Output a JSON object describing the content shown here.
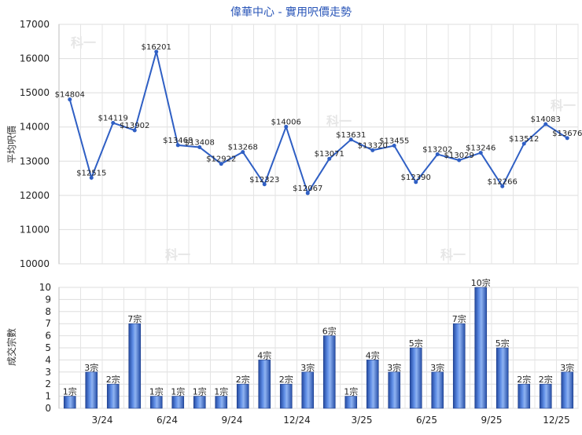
{
  "chart_data": [
    {
      "type": "line",
      "title": "偉華中心 - 實用呎價走勢",
      "ylabel": "平均呎價",
      "ylim": [
        10000,
        17000
      ],
      "yticks": [
        10000,
        11000,
        12000,
        13000,
        14000,
        15000,
        16000,
        17000
      ],
      "grid": true,
      "watermark": "科一",
      "series": [
        {
          "values": [
            14804,
            12515,
            14119,
            13902,
            16201,
            13468,
            13408,
            12922,
            13268,
            12323,
            14006,
            12067,
            13071,
            13631,
            13320,
            13455,
            12390,
            13202,
            13029,
            13246,
            12266,
            13512,
            14083,
            13676
          ],
          "labels": [
            "$14804",
            "$12515",
            "$14119",
            "$13902",
            "$16201",
            "$13468",
            "$13408",
            "$12922",
            "$13268",
            "$12323",
            "$14006",
            "$12067",
            "$13071",
            "$13631",
            "$13320",
            "$13455",
            "$12390",
            "$13202",
            "$13029",
            "$13246",
            "$12266",
            "$13512",
            "$14083",
            "$13676"
          ]
        }
      ],
      "colors": {
        "line": "#2f5fc4"
      }
    },
    {
      "type": "bar",
      "ylabel": "成交宗數",
      "ylim": [
        0,
        10
      ],
      "yticks": [
        0,
        1,
        2,
        3,
        4,
        5,
        6,
        7,
        8,
        9,
        10
      ],
      "grid": true,
      "x_tick_labels": [
        {
          "index": 2,
          "label": "3/24"
        },
        {
          "index": 5,
          "label": "6/24"
        },
        {
          "index": 8,
          "label": "9/24"
        },
        {
          "index": 11,
          "label": "12/24"
        },
        {
          "index": 14,
          "label": "3/25"
        },
        {
          "index": 17,
          "label": "6/25"
        },
        {
          "index": 20,
          "label": "9/25"
        },
        {
          "index": 23,
          "label": "12/25"
        }
      ],
      "series": [
        {
          "values": [
            1,
            3,
            2,
            7,
            1,
            1,
            1,
            1,
            2,
            4,
            2,
            3,
            6,
            1,
            4,
            3,
            5,
            3,
            7,
            10,
            5,
            2,
            2,
            3
          ],
          "labels": [
            "1宗",
            "3宗",
            "2宗",
            "7宗",
            "1宗",
            "1宗",
            "1宗",
            "1宗",
            "2宗",
            "4宗",
            "2宗",
            "3宗",
            "6宗",
            "1宗",
            "4宗",
            "3宗",
            "5宗",
            "3宗",
            "7宗",
            "10宗",
            "5宗",
            "2宗",
            "2宗",
            "3宗"
          ]
        }
      ],
      "colors": {
        "bar": "#2f5fc4"
      }
    }
  ]
}
